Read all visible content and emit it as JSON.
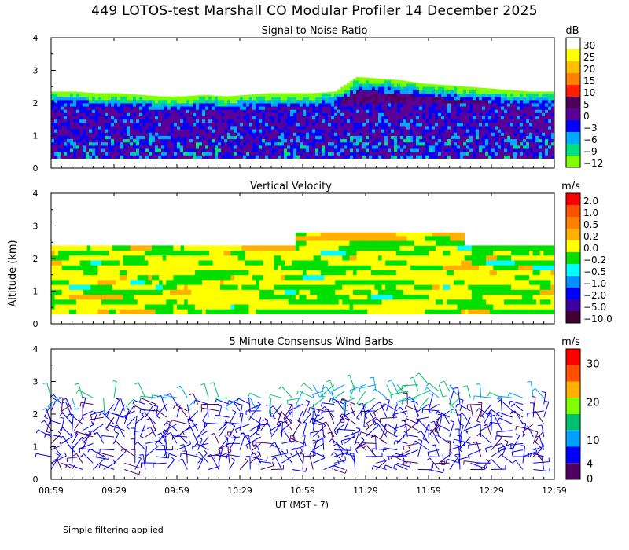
{
  "title": "449 LOTOS-test Marshall CO Modular Profiler 14 December 2025",
  "footnote": "Simple filtering applied",
  "y_axis_label": "Altitude (km)",
  "x_axis_label": "UT  (MST - 7)",
  "x_ticks": [
    "08:59",
    "09:29",
    "09:59",
    "10:29",
    "10:59",
    "11:29",
    "11:59",
    "12:29",
    "12:59"
  ],
  "y_ticks": [
    "0",
    "1",
    "2",
    "3",
    "4"
  ],
  "chart_data": [
    {
      "id": "snr",
      "type": "heatmap",
      "title": "Signal to Noise Ratio",
      "unit": "dB",
      "xlim_ut_hours": [
        8.983,
        12.983
      ],
      "ylim_km": [
        0,
        4
      ],
      "data_range_km": [
        0.3,
        2.4
      ],
      "colorbar_labels": [
        "30",
        "25",
        "20",
        "15",
        "10",
        "5",
        "0",
        "−3",
        "−6",
        "−9",
        "−12"
      ],
      "colors": [
        "#ffffff",
        "#ffff00",
        "#ffc000",
        "#ff8000",
        "#ff2000",
        "#50005a",
        "#5a0096",
        "#0000ff",
        "#00aaff",
        "#00e080",
        "#80ff00"
      ],
      "top_of_signal_km": [
        2.35,
        2.35,
        2.3,
        2.3,
        2.25,
        2.2,
        2.2,
        2.25,
        2.2,
        2.25,
        2.3,
        2.3,
        2.3,
        2.35,
        2.8,
        2.75,
        2.7,
        2.6,
        2.55,
        2.5,
        2.45,
        2.4,
        2.35,
        2.35
      ]
    },
    {
      "id": "vertical-velocity",
      "type": "heatmap",
      "title": "Vertical Velocity",
      "unit": "m/s",
      "xlim_ut_hours": [
        8.983,
        12.983
      ],
      "ylim_km": [
        0,
        4
      ],
      "data_range_km": [
        0.3,
        2.4
      ],
      "colorbar_labels": [
        "2.0",
        "1.0",
        "0.5",
        "0.2",
        "0.0",
        "−0.2",
        "−0.5",
        "−1.0",
        "−2.0",
        "−5.0",
        "−10.0"
      ],
      "colors": [
        "#ff0000",
        "#ff5000",
        "#ff8000",
        "#ffb000",
        "#ffff00",
        "#00e000",
        "#00ffff",
        "#0090ff",
        "#0000ff",
        "#4000a0",
        "#400030"
      ]
    },
    {
      "id": "wind-barbs",
      "type": "scatter",
      "title": "5 Minute Consensus Wind Barbs",
      "unit": "m/s",
      "xlim_ut_hours": [
        8.983,
        12.983
      ],
      "ylim_km": [
        0,
        4
      ],
      "colorbar_labels": [
        "30",
        "20",
        "10",
        "4",
        "0"
      ],
      "colorbar_label_values": [
        30,
        20,
        10,
        4,
        0
      ],
      "colors": [
        "#ff0000",
        "#ff5000",
        "#ffb000",
        "#80ff00",
        "#00c070",
        "#00a0ff",
        "#0000ff",
        "#500060"
      ],
      "color_scale_max": 34
    }
  ]
}
